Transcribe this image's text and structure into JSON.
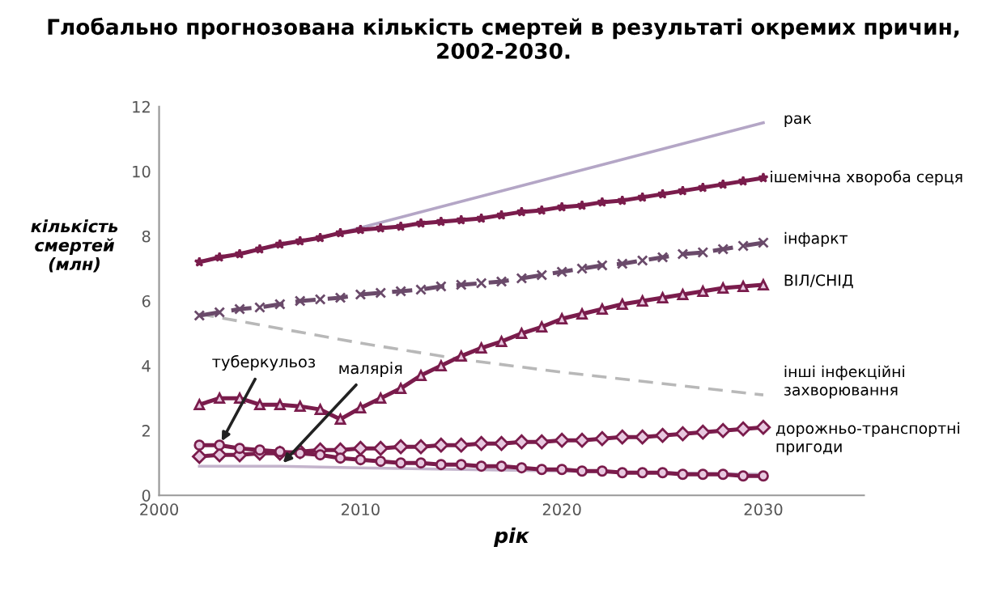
{
  "chart_data": {
    "type": "line",
    "title": "Глобально прогнозована кількість смертей в результаті окремих причин,\n2002-2030.",
    "xlabel": "рік",
    "ylabel": "кількість\nсмертей\n(млн)",
    "x": [
      2002,
      2003,
      2004,
      2005,
      2006,
      2007,
      2008,
      2009,
      2010,
      2011,
      2012,
      2013,
      2014,
      2015,
      2016,
      2017,
      2018,
      2019,
      2020,
      2021,
      2022,
      2023,
      2024,
      2025,
      2026,
      2027,
      2028,
      2029,
      2030
    ],
    "series": [
      {
        "name": "рак",
        "color": "#b4a6c6",
        "x": [
          2002,
          2009,
          2030
        ],
        "values": [
          7.2,
          8.1,
          11.5
        ],
        "marker": "none",
        "line_style": "solid"
      },
      {
        "name": "ішемічна хвороба серця",
        "color": "#7a1c4c",
        "values": [
          7.2,
          7.35,
          7.45,
          7.6,
          7.75,
          7.85,
          7.95,
          8.1,
          8.2,
          8.25,
          8.3,
          8.4,
          8.45,
          8.5,
          8.55,
          8.65,
          8.75,
          8.8,
          8.9,
          8.95,
          9.05,
          9.1,
          9.2,
          9.3,
          9.4,
          9.5,
          9.6,
          9.7,
          9.8
        ],
        "marker": "star",
        "line_style": "solid"
      },
      {
        "name": "інфаркт",
        "color": "#6a4a6a",
        "values": [
          5.55,
          5.65,
          5.75,
          5.8,
          5.9,
          6.0,
          6.05,
          6.1,
          6.2,
          6.25,
          6.3,
          6.35,
          6.45,
          6.5,
          6.55,
          6.6,
          6.7,
          6.8,
          6.9,
          7.0,
          7.1,
          7.15,
          7.25,
          7.35,
          7.45,
          7.5,
          7.6,
          7.7,
          7.8
        ],
        "marker": "cross",
        "line_style": "dashed"
      },
      {
        "name": "ВІЛ/СНІД",
        "color": "#7a1c4c",
        "values": [
          2.8,
          3.0,
          3.0,
          2.8,
          2.8,
          2.75,
          2.65,
          2.35,
          2.7,
          3.0,
          3.3,
          3.7,
          4.0,
          4.3,
          4.55,
          4.75,
          5.0,
          5.2,
          5.45,
          5.6,
          5.75,
          5.9,
          6.0,
          6.1,
          6.2,
          6.3,
          6.4,
          6.45,
          6.5
        ],
        "marker": "triangle",
        "line_style": "solid"
      },
      {
        "name": "інші інфекційні\nзахворювання",
        "color": "#b8b8b8",
        "x": [
          2002,
          2010,
          2015,
          2020,
          2030
        ],
        "values": [
          5.6,
          4.7,
          4.2,
          3.8,
          3.1
        ],
        "marker": "none",
        "line_style": "dashed"
      },
      {
        "name": "дорожньо-транспортні\nпригоди",
        "color": "#7a1c4c",
        "values": [
          1.2,
          1.25,
          1.25,
          1.3,
          1.3,
          1.35,
          1.4,
          1.4,
          1.45,
          1.45,
          1.5,
          1.5,
          1.55,
          1.55,
          1.6,
          1.6,
          1.65,
          1.65,
          1.7,
          1.7,
          1.75,
          1.8,
          1.8,
          1.85,
          1.9,
          1.95,
          2.0,
          2.05,
          2.1
        ],
        "marker": "diamond",
        "line_style": "solid"
      },
      {
        "name": "туберкульоз",
        "color": "#7a1c4c",
        "values": [
          1.55,
          1.55,
          1.45,
          1.4,
          1.35,
          1.3,
          1.25,
          1.15,
          1.1,
          1.05,
          1.0,
          1.0,
          0.95,
          0.95,
          0.9,
          0.9,
          0.85,
          0.8,
          0.8,
          0.75,
          0.75,
          0.7,
          0.7,
          0.7,
          0.65,
          0.65,
          0.65,
          0.6,
          0.6
        ],
        "marker": "circle",
        "line_style": "solid"
      },
      {
        "name": "малярія",
        "color": "#c4b4cc",
        "x": [
          2002,
          2006,
          2010,
          2020,
          2030
        ],
        "values": [
          0.9,
          0.9,
          0.85,
          0.75,
          0.65
        ],
        "marker": "none",
        "line_style": "solid"
      }
    ],
    "xlim": [
      2000,
      2035
    ],
    "ylim": [
      0,
      12
    ],
    "xticks": [
      2000,
      2010,
      2020,
      2030
    ],
    "yticks": [
      0,
      2,
      4,
      6,
      8,
      10,
      12
    ],
    "grid": false,
    "legend": false
  }
}
